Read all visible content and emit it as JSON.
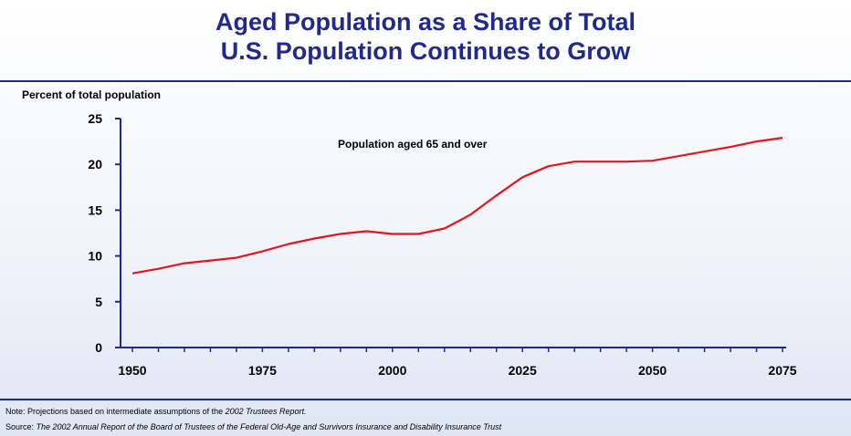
{
  "title_line1": "Aged Population as a Share of Total",
  "title_line2": "U.S. Population Continues to Grow",
  "note_prefix": "Note:  Projections based on intermediate assumptions of the ",
  "note_italic": "2002 Trustees Report.",
  "source_prefix": "Source:  ",
  "source_italic": "The 2002 Annual Report of the Board of Trustees of the Federal Old-Age and Survivors Insurance and Disability Insurance Trust",
  "colors": {
    "title": "#1f2a8c",
    "line": "#e8141c",
    "axis": "#1f2a8c"
  },
  "chart_data": {
    "type": "line",
    "title": "",
    "xlabel": "",
    "ylabel": "Percent of total population",
    "xlim": [
      1950,
      2075
    ],
    "ylim": [
      0,
      25
    ],
    "xticks": [
      1950,
      1975,
      2000,
      2025,
      2050,
      2075
    ],
    "yticks": [
      0,
      5,
      10,
      15,
      20,
      25
    ],
    "grid": false,
    "annotation": "Population aged 65 and over",
    "series": [
      {
        "name": "Population aged 65 and over",
        "x": [
          1950,
          1955,
          1960,
          1965,
          1970,
          1975,
          1980,
          1985,
          1990,
          1995,
          2000,
          2005,
          2010,
          2015,
          2020,
          2025,
          2030,
          2035,
          2040,
          2045,
          2050,
          2055,
          2060,
          2065,
          2070,
          2075
        ],
        "values": [
          8.1,
          8.6,
          9.2,
          9.5,
          9.8,
          10.5,
          11.3,
          11.9,
          12.4,
          12.7,
          12.4,
          12.4,
          13.0,
          14.5,
          16.6,
          18.6,
          19.8,
          20.3,
          20.3,
          20.3,
          20.4,
          20.9,
          21.4,
          21.9,
          22.5,
          22.9
        ]
      }
    ]
  }
}
